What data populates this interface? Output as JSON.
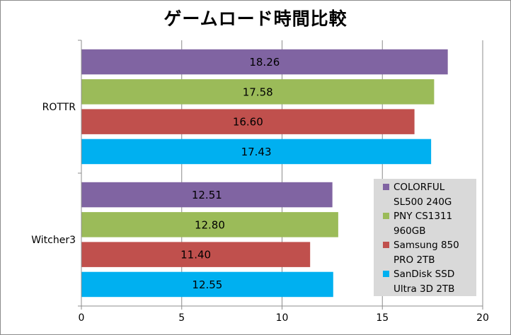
{
  "chart_data": {
    "type": "bar",
    "orientation": "horizontal",
    "title": "ゲームロード時間比較",
    "xlabel": "",
    "ylabel": "",
    "categories": [
      "ROTTR",
      "Witcher3"
    ],
    "series": [
      {
        "name": "COLORFUL SL500 240G",
        "color": "#8064a2",
        "values": [
          18.26,
          12.51
        ]
      },
      {
        "name": "PNY CS1311 960GB",
        "color": "#9bbb59",
        "values": [
          17.58,
          12.8
        ]
      },
      {
        "name": "Samsung 850 PRO 2TB",
        "color": "#c0504d",
        "values": [
          16.6,
          11.4
        ]
      },
      {
        "name": "SanDisk SSD Ultra 3D 2TB",
        "color": "#00b0f0",
        "values": [
          17.43,
          12.55
        ]
      }
    ],
    "xlim": [
      0,
      20
    ],
    "xticks": [
      0,
      5,
      10,
      15,
      20
    ],
    "grid": true,
    "legend_position": "bottom-right"
  }
}
